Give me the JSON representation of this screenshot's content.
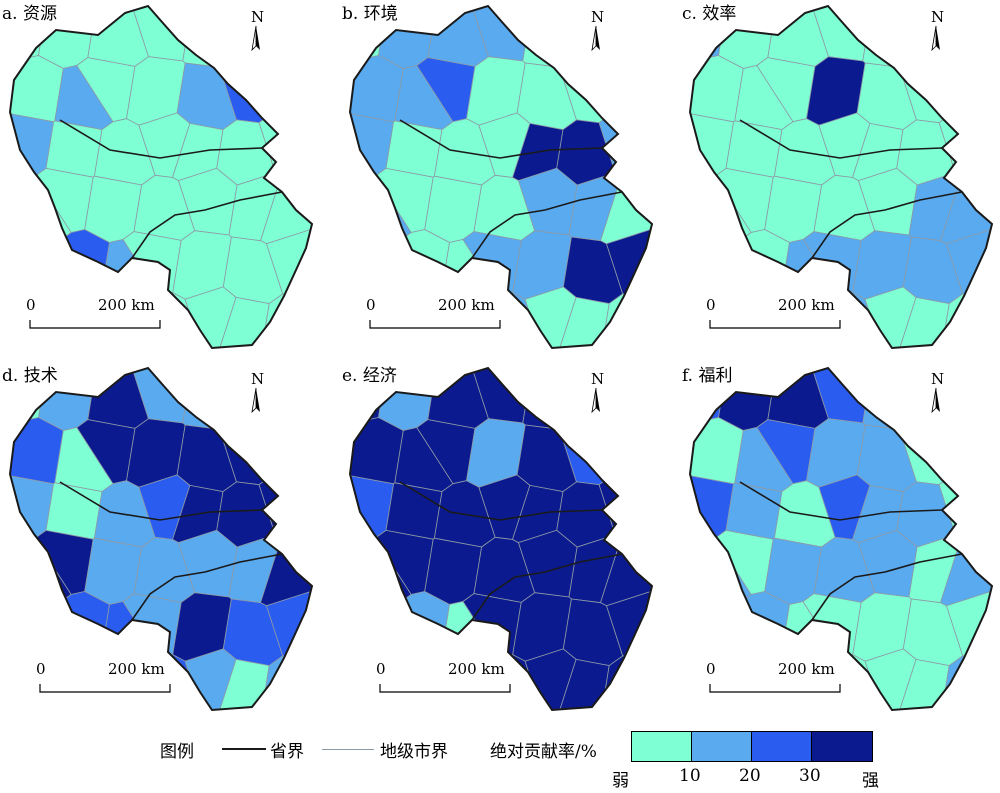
{
  "colors": {
    "class1": "#7fffd4",
    "class2": "#5aaaf0",
    "class3": "#2a5cf0",
    "class4": "#0c1a8f",
    "province_border": "#1a1a1a",
    "city_border": "#8c9aa6"
  },
  "panels": [
    {
      "title": "a. 资源",
      "north": "N",
      "scale": {
        "zero": "0",
        "dist": "200 km"
      },
      "regions": [
        1,
        1,
        1,
        1,
        1,
        2,
        1,
        1,
        2,
        1,
        1,
        2,
        3,
        1,
        2,
        1,
        1,
        1,
        1,
        1,
        1,
        1,
        1,
        1,
        1,
        1,
        1,
        1,
        1,
        3,
        2,
        1,
        1,
        1,
        1,
        1,
        1,
        1,
        1,
        1,
        1,
        1
      ]
    },
    {
      "title": "b. 环境",
      "north": "N",
      "scale": {
        "zero": "0",
        "dist": "200 km"
      },
      "regions": [
        1,
        2,
        2,
        2,
        1,
        4,
        2,
        2,
        2,
        3,
        1,
        1,
        1,
        2,
        2,
        1,
        1,
        1,
        4,
        4,
        2,
        2,
        1,
        1,
        1,
        2,
        2,
        1,
        1,
        1,
        1,
        2,
        2,
        4,
        4,
        4,
        2,
        1,
        2,
        1,
        1,
        1
      ]
    },
    {
      "title": "c. 效率",
      "north": "N",
      "scale": {
        "zero": "0",
        "dist": "200 km"
      },
      "regions": [
        2,
        1,
        1,
        1,
        1,
        1,
        1,
        1,
        1,
        1,
        4,
        1,
        1,
        1,
        1,
        1,
        1,
        1,
        1,
        1,
        1,
        1,
        1,
        1,
        1,
        1,
        2,
        2,
        2,
        1,
        2,
        2,
        2,
        2,
        2,
        2,
        2,
        1,
        2,
        1,
        1,
        1
      ]
    },
    {
      "title": "d. 技术",
      "north": "N",
      "scale": {
        "zero": "0",
        "dist": "200 km"
      },
      "regions": [
        1,
        2,
        4,
        2,
        2,
        2,
        1,
        3,
        1,
        4,
        4,
        4,
        4,
        3,
        2,
        1,
        2,
        3,
        4,
        4,
        4,
        4,
        4,
        2,
        2,
        2,
        2,
        4,
        4,
        3,
        3,
        2,
        4,
        3,
        3,
        3,
        2,
        4,
        3,
        2,
        1,
        2
      ]
    },
    {
      "title": "e. 经济",
      "north": "N",
      "scale": {
        "zero": "0",
        "dist": "200 km"
      },
      "regions": [
        4,
        2,
        4,
        4,
        4,
        4,
        4,
        4,
        4,
        4,
        2,
        4,
        3,
        4,
        3,
        4,
        4,
        4,
        4,
        4,
        4,
        4,
        4,
        4,
        4,
        4,
        4,
        4,
        2,
        2,
        1,
        4,
        4,
        4,
        4,
        4,
        4,
        4,
        4,
        4,
        4,
        4
      ]
    },
    {
      "title": "f. 福利",
      "north": "N",
      "scale": {
        "zero": "0",
        "dist": "200 km"
      },
      "regions": [
        3,
        4,
        4,
        3,
        2,
        2,
        2,
        1,
        2,
        3,
        2,
        2,
        1,
        1,
        3,
        2,
        1,
        3,
        2,
        2,
        1,
        2,
        1,
        2,
        2,
        2,
        1,
        2,
        1,
        2,
        1,
        1,
        1,
        1,
        1,
        2,
        2,
        1,
        1,
        1,
        1,
        2
      ]
    }
  ],
  "legend": {
    "title": "图例",
    "province_label": "省界",
    "city_label": "地级市界",
    "contribution_label": "绝对贡献率/%",
    "ticks": [
      "弱",
      "10",
      "20",
      "30",
      "强"
    ]
  }
}
